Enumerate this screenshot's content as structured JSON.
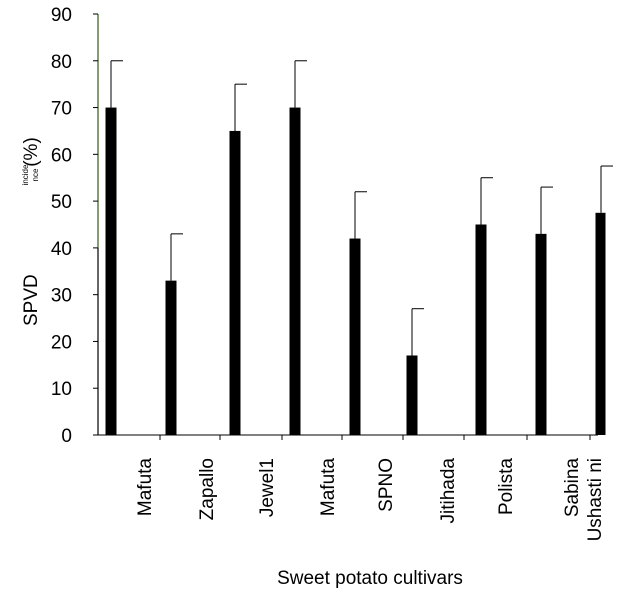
{
  "chart_data": {
    "type": "bar",
    "categories": [
      "Mafuta",
      "Zapallo",
      "Jewel1",
      "Mafuta",
      "SPNO",
      "Jitihada",
      "Polista",
      "Sabina",
      "Ushasti ni"
    ],
    "values": [
      70,
      33,
      65,
      70,
      42,
      17,
      45,
      43,
      47.5
    ],
    "error_upper": [
      80,
      43,
      75,
      80,
      52,
      27,
      55,
      53,
      57.5
    ],
    "xlabel": "Sweet potato cultivars",
    "ylabel": {
      "main": "SPVD",
      "small_line1": "incide",
      "small_line2": "nce",
      "unit": "(%)"
    },
    "ylim": [
      0,
      90
    ],
    "yticks": [
      0,
      10,
      20,
      30,
      40,
      50,
      60,
      70,
      80,
      90
    ],
    "grid": false,
    "legend": "none",
    "colors": {
      "bar": "#000000",
      "axis": "#000000",
      "y_axis_top": "#2e5a1c"
    }
  }
}
